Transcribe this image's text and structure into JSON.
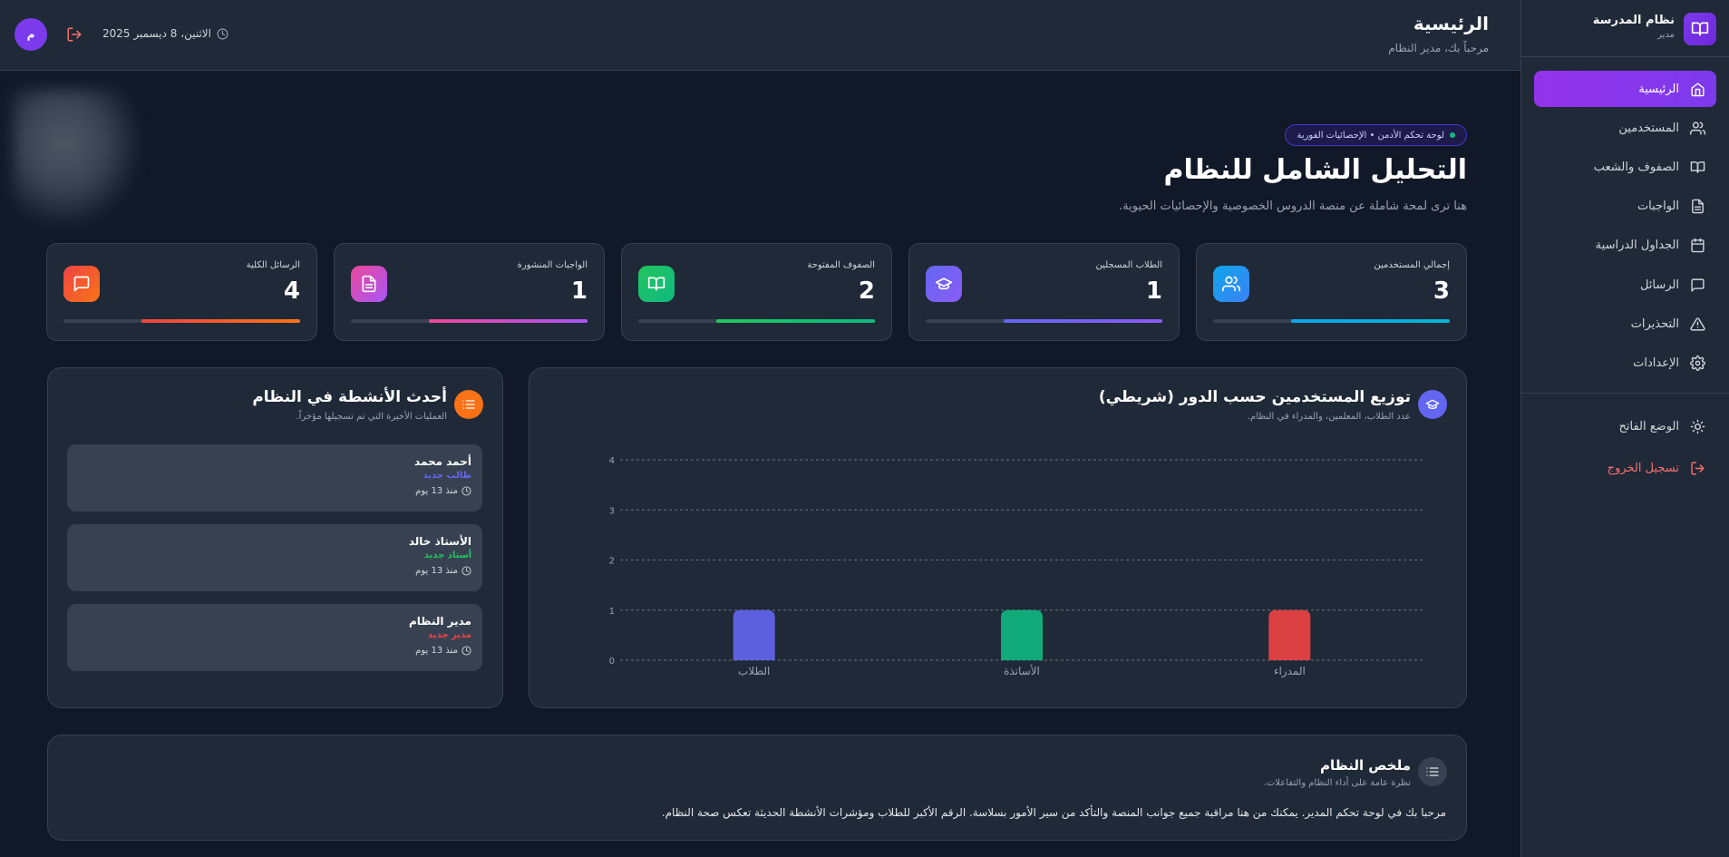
{
  "sidebar": {
    "brand_name": "نظام المدرسة",
    "brand_role": "مدير",
    "items": [
      {
        "label": "الرئيسية",
        "icon": "home-icon"
      },
      {
        "label": "المستخدمين",
        "icon": "users-icon"
      },
      {
        "label": "الصفوف والشعب",
        "icon": "book-open-icon"
      },
      {
        "label": "الواجبات",
        "icon": "file-text-icon"
      },
      {
        "label": "الجداول الدراسية",
        "icon": "calendar-icon"
      },
      {
        "label": "الرسائل",
        "icon": "message-icon"
      },
      {
        "label": "التحذيرات",
        "icon": "alert-triangle-icon"
      },
      {
        "label": "الإعدادات",
        "icon": "gear-icon"
      }
    ],
    "theme_label": "الوضع الفاتح",
    "logout_label": "تسجيل الخروج"
  },
  "header": {
    "title": "الرئيسية",
    "subtitle": "مرحباً بك، مدير النظام",
    "date": "الاثنين، 8 ديسمبر 2025",
    "avatar_initial": "م"
  },
  "hero": {
    "badge": "لوحة تحكم الأدمن • الإحصائيات الفورية",
    "title": "التحليل الشامل للنظام",
    "description": "هنا ترى لمحة شاملة عن منصة الدروس الخصوصية والإحصائيات الحيوية."
  },
  "stats": [
    {
      "label": "إجمالي المستخدمين",
      "value": "3",
      "color_from": "#0ea5e9",
      "color_to": "#06b6d4",
      "progress": 0.67
    },
    {
      "label": "الطلاب المسجلين",
      "value": "1",
      "color_from": "#6366f1",
      "color_to": "#8b5cf6",
      "progress": 0.67
    },
    {
      "label": "الصفوف المفتوحة",
      "value": "2",
      "color_from": "#22c55e",
      "color_to": "#10b981",
      "progress": 0.67
    },
    {
      "label": "الواجبات المنشورة",
      "value": "1",
      "color_from": "#ec4899",
      "color_to": "#a855f7",
      "progress": 0.67
    },
    {
      "label": "الرسائل الكلية",
      "value": "4",
      "color_from": "#ef4444",
      "color_to": "#f97316",
      "progress": 0.67
    }
  ],
  "chart_panel": {
    "title": "توزيع المستخدمين حسب الدور (شريطي)",
    "subtitle": "عدد الطلاب، المعلمين، والمدراء في النظام."
  },
  "chart_data": {
    "type": "bar",
    "title": "توزيع المستخدمين حسب الدور (شريطي)",
    "categories": [
      "المدراء",
      "الأساتذة",
      "الطلاب"
    ],
    "values": [
      1,
      1,
      1
    ],
    "colors": [
      "#ef4444",
      "#10b981",
      "#6366f1"
    ],
    "ylim": [
      0,
      4
    ],
    "yticks": [
      0,
      1,
      2,
      3,
      4
    ],
    "grid": true
  },
  "activity_panel": {
    "title": "أحدث الأنشطة في النظام",
    "subtitle": "العمليات الأخيرة التي تم تسجيلها مؤخراً.",
    "items": [
      {
        "name": "أحمد محمد",
        "role": "طالب جديد",
        "role_color": "#6366f1",
        "time": "منذ 13 يوم"
      },
      {
        "name": "الأستاذ خالد",
        "role": "أستاذ جديد",
        "role_color": "#22c55e",
        "time": "منذ 13 يوم"
      },
      {
        "name": "مدير النظام",
        "role": "مدير جديد",
        "role_color": "#ef4444",
        "time": "منذ 13 يوم"
      }
    ]
  },
  "summary_panel": {
    "title": "ملخص النظام",
    "subtitle": "نظرة عامة على أداء النظام والتفاعلات.",
    "text": "مرحبا بك في لوحة تحكم المدير. يمكنك من هنا مراقبة جميع جوانب المنصة والتأكد من سير الأمور بسلاسة. الرقم الأكبر للطلاب ومؤشرات الأنشطة الحديثة تعكس صحة النظام."
  }
}
